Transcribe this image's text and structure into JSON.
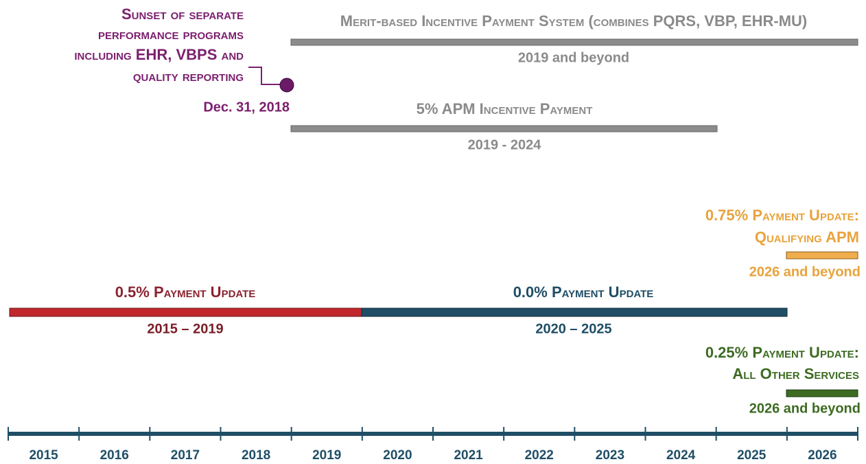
{
  "sunset": {
    "lines": [
      "Sunset of separate",
      "performance programs",
      "including EHR, VBPS and",
      "quality reporting"
    ],
    "date": "Dec. 31, 2018"
  },
  "mips": {
    "label": "Merit-based Incentive Payment System (combines PQRS, VBP, EHR-MU)",
    "period": "2019 and beyond"
  },
  "apm_incentive": {
    "label": "5% APM Incentive Payment",
    "period": "2019 - 2024"
  },
  "update_2015": {
    "label": "0.5% Payment Update",
    "period": "2015 – 2019"
  },
  "update_2020": {
    "label": "0.0% Payment Update",
    "period": "2020 – 2025"
  },
  "update_apm": {
    "lines": [
      "0.75% Payment Update:",
      "Qualifying APM"
    ],
    "period": "2026 and beyond"
  },
  "update_other": {
    "lines": [
      "0.25% Payment Update:",
      "All Other Services"
    ],
    "period": "2026 and beyond"
  },
  "years": [
    "2015",
    "2016",
    "2017",
    "2018",
    "2019",
    "2020",
    "2021",
    "2022",
    "2023",
    "2024",
    "2025",
    "2026"
  ]
}
